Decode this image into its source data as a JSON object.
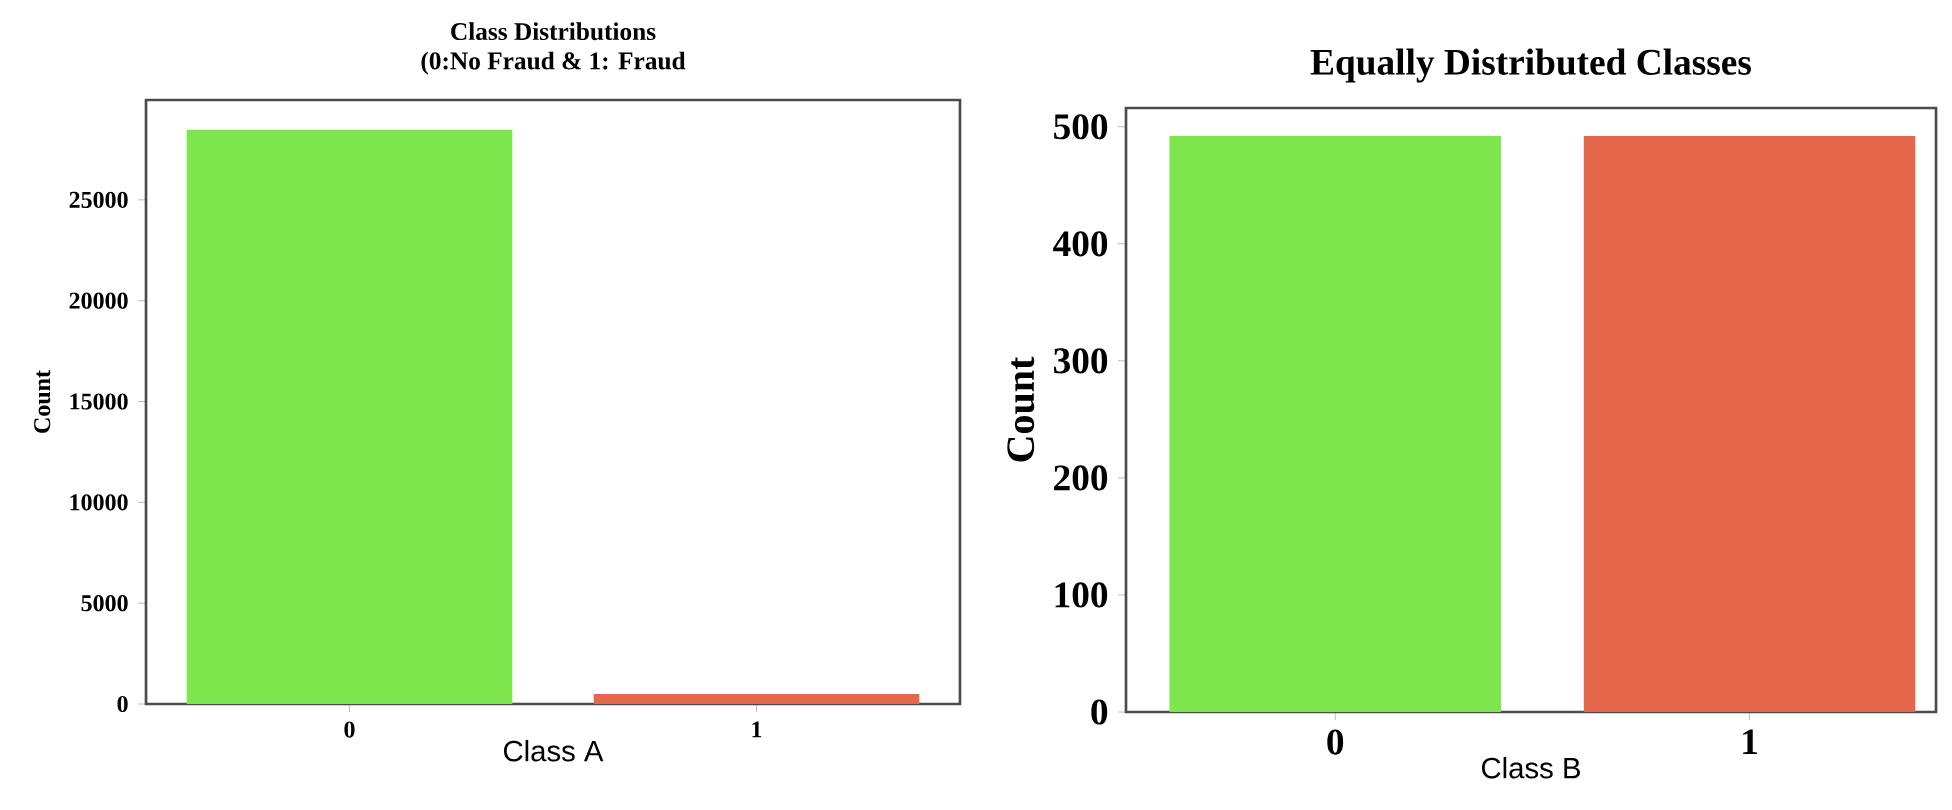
{
  "chart_data": [
    {
      "type": "bar",
      "title": "Class Distributions",
      "subtitle": "(0:No Fraud & 1: Fraud",
      "xlabel": "Class A",
      "ylabel": "Count",
      "categories": [
        "0",
        "1"
      ],
      "values": [
        28480,
        492
      ],
      "colors": [
        "#7de64d",
        "#e4664b"
      ],
      "ylim": [
        0,
        29950
      ],
      "yticks": [
        0,
        5000,
        10000,
        15000,
        20000,
        25000
      ]
    },
    {
      "type": "bar",
      "title": "Equally Distributed Classes",
      "xlabel": "Class B",
      "ylabel": "Count",
      "categories": [
        "0",
        "1"
      ],
      "values": [
        492,
        492
      ],
      "colors": [
        "#7de64d",
        "#e4664b"
      ],
      "ylim": [
        0,
        516
      ],
      "yticks": [
        0,
        100,
        200,
        300,
        400,
        500
      ]
    }
  ]
}
